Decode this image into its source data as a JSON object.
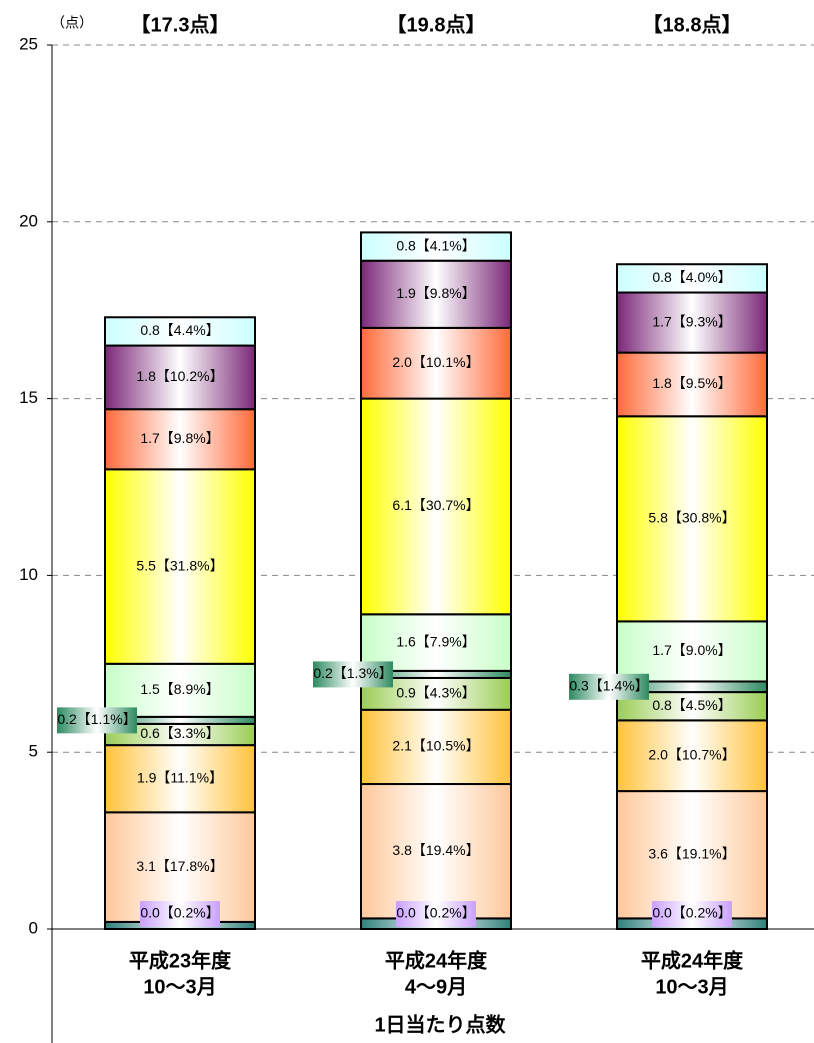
{
  "chart_data": {
    "type": "stacked-bar",
    "y_unit": "（点）",
    "x_label": "1日当たり点数",
    "categories": [
      [
        "平成23年度",
        "10～3月"
      ],
      [
        "平成24年度",
        "4～9月"
      ],
      [
        "平成24年度",
        "10～3月"
      ]
    ],
    "totals": [
      "【17.3点】",
      "【19.8点】",
      "【18.8点】"
    ],
    "ylim": [
      0,
      25
    ],
    "yticks": [
      0,
      5,
      10,
      15,
      20,
      25
    ],
    "grid": true,
    "series": [
      {
        "color": "#2f7f7a",
        "values": [
          0.2,
          0.3,
          0.3
        ]
      },
      {
        "color": "#c9a0ff",
        "values": [
          0.0,
          0.0,
          0.0
        ],
        "value_labels": [
          "0.0【0.2%】",
          "0.0【0.2%】",
          "0.0【0.2%】"
        ]
      },
      {
        "color": "#ffc89a",
        "values": [
          3.1,
          3.8,
          3.6
        ],
        "value_labels": [
          "3.1【17.8%】",
          "3.8【19.4%】",
          "3.6【19.1%】"
        ]
      },
      {
        "color": "#ffc23a",
        "values": [
          1.9,
          2.1,
          2.0
        ],
        "value_labels": [
          "1.9【11.1%】",
          "2.1【10.5%】",
          "2.0【10.7%】"
        ]
      },
      {
        "color": "#9acd55",
        "values": [
          0.6,
          0.9,
          0.8
        ],
        "value_labels": [
          "0.6【3.3%】",
          "0.9【4.3%】",
          "0.8【4.5%】"
        ]
      },
      {
        "color": "#2e8a60",
        "values": [
          0.2,
          0.2,
          0.3
        ],
        "value_labels": [
          "0.2【1.1%】",
          "0.2【1.3%】",
          "0.3【1.4%】"
        ]
      },
      {
        "color": "#c8ffc8",
        "values": [
          1.5,
          1.6,
          1.7
        ],
        "value_labels": [
          "1.5【8.9%】",
          "1.6【7.9%】",
          "1.7【9.0%】"
        ]
      },
      {
        "color": "#ffff00",
        "values": [
          5.5,
          6.1,
          5.8
        ],
        "value_labels": [
          "5.5【31.8%】",
          "6.1【30.7%】",
          "5.8【30.8%】"
        ]
      },
      {
        "color": "#ff6a3a",
        "values": [
          1.7,
          2.0,
          1.8
        ],
        "value_labels": [
          "1.7【9.8%】",
          "2.0【10.1%】",
          "1.8【9.5%】"
        ]
      },
      {
        "color": "#7a2878",
        "values": [
          1.8,
          1.9,
          1.7
        ],
        "value_labels": [
          "1.8【10.2%】",
          "1.9【9.8%】",
          "1.7【9.3%】"
        ]
      },
      {
        "color": "#ccffff",
        "values": [
          0.8,
          0.8,
          0.8
        ],
        "value_labels": [
          "0.8【4.4%】",
          "0.8【4.1%】",
          "0.8【4.0%】"
        ]
      }
    ]
  }
}
